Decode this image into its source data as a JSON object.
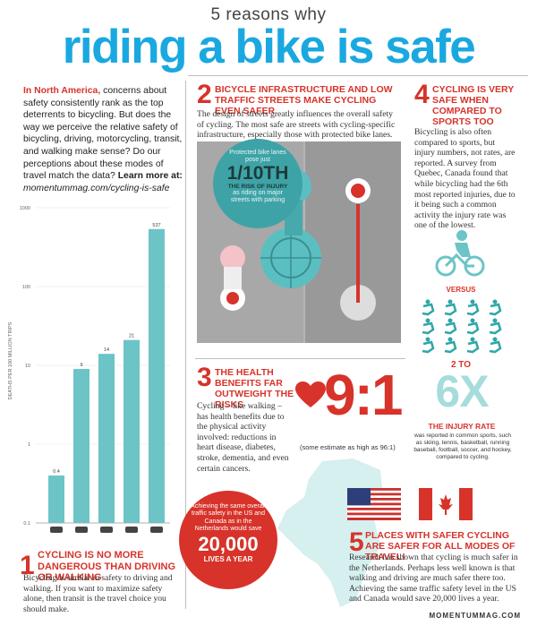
{
  "header": {
    "subtitle": "5 reasons why",
    "title": "riding a bike is safe"
  },
  "intro": {
    "lead": "In North America,",
    "text": " concerns about safety consistently rank as the top deterrents to bicycling. But does the way we perceive the relative safety of bicycling, driving, motorcycling, transit, and walking make sense? Do our perceptions about these modes of travel match the data?",
    "cta": " Learn more at:",
    "url": "momentummag.com/cycling-is-safe"
  },
  "chart_data": {
    "type": "bar",
    "categories": [
      "transit",
      "walking",
      "driving",
      "cycling",
      "motorcycling"
    ],
    "values": [
      0.4,
      9,
      14,
      21,
      537
    ],
    "data_labels": [
      "0.4",
      "9",
      "14",
      "21",
      "537"
    ],
    "ylabel": "DEATHS PER 100 MILLION TRIPS",
    "yscale": "log",
    "ylim": [
      0.1,
      1000
    ],
    "yticks": [
      "1000",
      "100",
      "10",
      "1",
      "0.1"
    ],
    "bar_color": "#6cc4c6"
  },
  "section1": {
    "num": "1",
    "head": "Cycling is no more dangerous than driving or walking",
    "body": "Bicycling is similar in safety to driving and walking. If you want to maximize safety alone, then transit is the travel choice you should make."
  },
  "section2": {
    "num": "2",
    "head": "Bicycle infrastructure and low traffic streets make cycling even safer",
    "body": "The design of streets greatly influences the overall safety of cycling. The most safe are streets with cycling-specific infrastructure, especially those with protected bike lanes.",
    "bubble_top": "Protected bike lanes pose just",
    "bubble_big": "1/10TH",
    "bubble_mid": "THE RISK OF INJURY",
    "bubble_bottom": "as riding on major streets with parking"
  },
  "section3": {
    "num": "3",
    "head": "The health benefits far outweight the risks",
    "body": "Cycling – like walking – has health benefits due to the physical activity involved: reductions in heart disease, diabetes, stroke, dementia, and even certain cancers.",
    "ratio": "9:1",
    "note": "(some estimate as high as 96:1)"
  },
  "section4": {
    "num": "4",
    "head": "Cycling is very safe when compared to sports too",
    "body": "Bicycling is also often compared to sports, but injury numbers, not rates, are reported. A survey from Quebec, Canada found that while bicycling had the 6th most reported injuries, due to it being such a common activity the injury rate was one of the lowest.",
    "versus": "VERSUS",
    "to": "2 TO",
    "big": "6X",
    "rate_head": "THE INJURY RATE",
    "rate_body": "was reported in common sports, such as skiing, tennis, basketball, running baseball, football, soccer, and hockey, compared to cycling."
  },
  "section5": {
    "num": "5",
    "head": "Places with safer cycling are safer for all modes of travel!",
    "body": "Research has shown that cycling is much safer in the Netherlands. Perhaps less well known is that walking and driving are much safer there too. Achieving the same traffic safety level in the US and Canada would save 20,000 lives a year.",
    "bubble_text": "Achieving the same overall traffic safety in the US and Canada as in the Netherlands would save",
    "bubble_big": "20,000",
    "bubble_small": "LIVES A YEAR"
  },
  "footer": {
    "site": "MOMENTUMMAG.COM"
  },
  "colors": {
    "red": "#d7332a",
    "teal": "#5bbfc2",
    "blue": "#1aa8e0"
  }
}
